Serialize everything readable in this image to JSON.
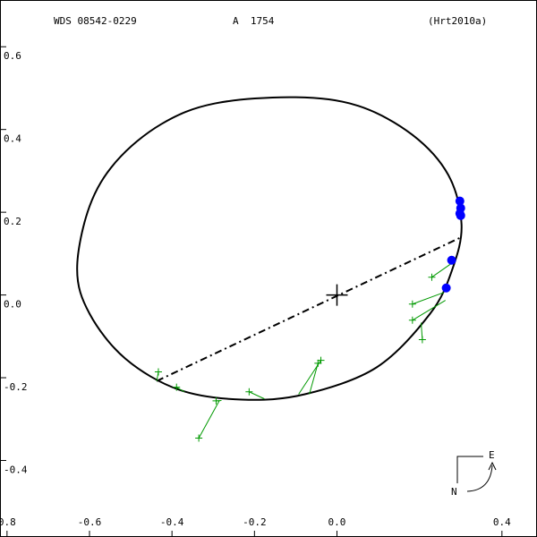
{
  "chart_data": {
    "type": "orbit",
    "title": "WDS 08542-0229",
    "subtitle": "A  1754",
    "reference": "(Hrt2010a)",
    "xlim": [
      -0.817,
      0.485
    ],
    "ylim": [
      -0.585,
      0.713
    ],
    "xticks": [
      {
        "value": -0.8,
        "label": "0.8"
      },
      -0.6,
      -0.4,
      -0.2,
      {
        "value": 0,
        "label": "0.0"
      },
      0.4
    ],
    "yticks": [
      0.6,
      0.4,
      0.2,
      {
        "value": 0,
        "label": "0.0"
      },
      -0.2,
      -0.4
    ],
    "orbit": {
      "color": "#000000",
      "x": [
        -0.63,
        -0.6,
        -0.535,
        -0.426,
        -0.296,
        -0.1,
        0.052,
        0.183,
        0.27,
        0.302,
        0.28,
        0.226,
        0.096,
        -0.078,
        -0.23,
        -0.383,
        -0.513,
        -0.6
      ],
      "y": [
        0.063,
        0.214,
        0.323,
        0.413,
        0.463,
        0.478,
        0.457,
        0.387,
        0.29,
        0.171,
        0.063,
        -0.045,
        -0.175,
        -0.24,
        -0.253,
        -0.229,
        -0.154,
        -0.045
      ]
    },
    "node_line": {
      "color": "#000000",
      "x": [
        -0.437,
        0.3
      ],
      "y": [
        -0.208,
        0.139
      ]
    },
    "primary": {
      "x": 0,
      "y": 0
    },
    "measurements_speckle": {
      "color": "#0000ff",
      "x": [
        0.298,
        0.3,
        0.298,
        0.3,
        0.278,
        0.265
      ],
      "y": [
        0.227,
        0.21,
        0.197,
        0.192,
        0.084,
        0.017
      ]
    },
    "measurements_micrometric": {
      "color": "#009900",
      "x": [
        0.23,
        0.183,
        0.183,
        0.207,
        -0.039,
        -0.046,
        -0.213,
        -0.293,
        -0.335,
        -0.389,
        -0.433
      ],
      "y": [
        0.043,
        -0.022,
        -0.061,
        -0.108,
        -0.158,
        -0.165,
        -0.234,
        -0.256,
        -0.346,
        -0.223,
        -0.186
      ],
      "predicted_x": [
        0.28,
        0.259,
        0.263,
        0.204,
        -0.093,
        -0.067,
        -0.176,
        -0.28,
        -0.285,
        -0.37,
        -0.437
      ],
      "predicted_y": [
        0.078,
        0.006,
        -0.013,
        -0.067,
        -0.24,
        -0.24,
        -0.251,
        -0.255,
        -0.255,
        -0.234,
        -0.208
      ]
    },
    "compass": {
      "east": "E",
      "north": "N"
    }
  }
}
